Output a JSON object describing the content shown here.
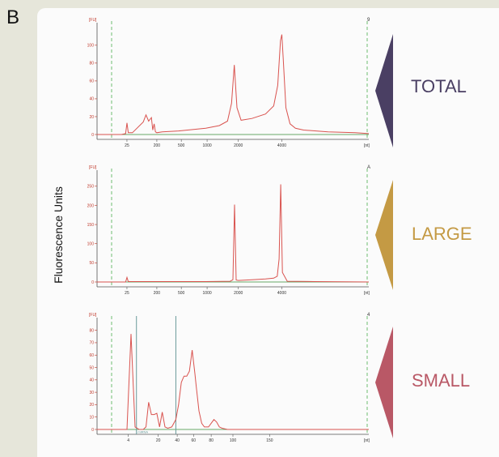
{
  "panel_label": "B",
  "y_axis_title": "Fluorescence Units",
  "colors": {
    "trace": "#d9534f",
    "baseline": "#3a8f3a",
    "marker_line": "#6a9a9a",
    "total": "#4a3f63",
    "large": "#c49a44",
    "small": "#b95866"
  },
  "samples": [
    {
      "name": "TOTAL",
      "corner": "9"
    },
    {
      "name": "LARGE",
      "corner": "A"
    },
    {
      "name": "SMALL",
      "corner": "4"
    }
  ],
  "chart_data": [
    {
      "type": "line",
      "yunit": "[FU]",
      "xunit": "[nt]",
      "xticks": [
        "25",
        "200",
        "500",
        "1000",
        "2000",
        "4000"
      ],
      "yticks": [
        "0",
        "20",
        "40",
        "60",
        "80",
        "100"
      ],
      "ylim": [
        0,
        118
      ],
      "xlim": [
        0,
        100
      ],
      "xtick_positions": [
        11,
        22,
        31,
        40.5,
        52,
        68
      ],
      "x": [
        0,
        5,
        9,
        10.5,
        11,
        11.5,
        13,
        17,
        18,
        19,
        20,
        20.5,
        21,
        21.5,
        22,
        24,
        30,
        40,
        45,
        48,
        49.5,
        50.5,
        51.5,
        53,
        57,
        62,
        65,
        66.5,
        67.5,
        68,
        68.5,
        69.5,
        71,
        73,
        76,
        85,
        95,
        100
      ],
      "y": [
        0,
        0,
        0,
        1,
        13,
        2,
        2,
        14,
        22,
        15,
        19,
        5,
        12,
        3,
        2,
        3,
        4,
        7,
        10,
        15,
        35,
        78,
        30,
        16,
        18,
        23,
        32,
        55,
        105,
        112,
        85,
        30,
        12,
        7,
        5,
        3,
        2,
        1
      ]
    },
    {
      "type": "line",
      "yunit": "[FU]",
      "xunit": "[nt]",
      "xticks": [
        "25",
        "200",
        "500",
        "1000",
        "2000",
        "4000"
      ],
      "yticks": [
        "0",
        "50",
        "100",
        "150",
        "200",
        "250"
      ],
      "ylim": [
        0,
        275
      ],
      "xlim": [
        0,
        100
      ],
      "xtick_positions": [
        11,
        22,
        31,
        40.5,
        52,
        68
      ],
      "x": [
        0,
        9,
        10.5,
        11,
        11.5,
        14,
        20,
        40,
        49,
        50,
        50.6,
        51.2,
        52,
        57,
        62,
        65,
        66.3,
        67,
        67.6,
        68.2,
        70,
        80,
        100
      ],
      "y": [
        0,
        0,
        0,
        12,
        1,
        1,
        1,
        1,
        2,
        6,
        202,
        5,
        4,
        6,
        8,
        10,
        15,
        60,
        255,
        25,
        2,
        1,
        0
      ]
    },
    {
      "type": "line",
      "yunit": "[FU]",
      "xunit": "[nt]",
      "xticks": [
        "4",
        "20",
        "40",
        "60",
        "80",
        "100",
        "150"
      ],
      "yticks": [
        "0",
        "10",
        "20",
        "30",
        "40",
        "50",
        "60",
        "70",
        "80"
      ],
      "ylim": [
        0,
        85
      ],
      "xlim": [
        0,
        100
      ],
      "xtick_positions": [
        11.5,
        22.5,
        29.5,
        35.5,
        42,
        50,
        63.5
      ],
      "marker_label": "miRNA",
      "x": [
        0,
        9,
        11,
        12.5,
        14,
        15.5,
        17,
        18,
        19,
        20,
        21,
        22,
        23,
        24,
        25,
        26,
        27.5,
        29,
        30,
        31,
        32,
        33,
        34,
        35,
        36,
        36.5,
        37.5,
        38.5,
        39.5,
        41,
        43,
        44,
        45,
        46,
        48,
        55,
        70,
        100
      ],
      "y": [
        0,
        0,
        0,
        77,
        2,
        0,
        0,
        2,
        22,
        12,
        12,
        13,
        2,
        14,
        2,
        1,
        2,
        8,
        20,
        38,
        43,
        43,
        47,
        64,
        45,
        35,
        15,
        5,
        2,
        2,
        8,
        6,
        2,
        1,
        0,
        0,
        0,
        0
      ]
    }
  ]
}
